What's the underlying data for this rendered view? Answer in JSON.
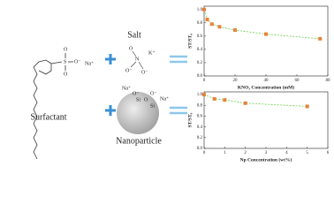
{
  "diagram": {
    "surfactant": "Surfactant",
    "salt": "Salt",
    "nanoparticle": "Nanoparticle",
    "atoms": [
      "O",
      "S",
      "O",
      "O⁻",
      "Na⁺",
      "O",
      "N",
      "O⁻",
      "O⁻",
      "K⁺",
      "Na⁺",
      "O⁻",
      "Si",
      "O",
      "Si",
      "O⁻",
      "Na⁺"
    ]
  },
  "chart_data": [
    {
      "type": "scatter",
      "ylabel": "ST/ST₀",
      "xlabel": "KNO₃ Concentration (mM)",
      "series": [
        {
          "x": [
            0,
            2,
            5,
            10,
            20,
            40,
            75
          ],
          "values": [
            1.0,
            0.85,
            0.78,
            0.74,
            0.69,
            0.63,
            0.56
          ],
          "color": "#e8823a",
          "fit_color": "#6ccf4a"
        }
      ],
      "xlim": [
        0,
        80
      ],
      "xticks": [
        0,
        20,
        40,
        60,
        80
      ],
      "ylim": [
        0,
        1.05
      ],
      "yticks": [
        {
          "value": 0,
          "label": "0.0"
        },
        0.2,
        0.4,
        0.6,
        0.8,
        {
          "value": 1,
          "label": "1.0"
        }
      ]
    },
    {
      "type": "scatter",
      "ylabel": "ST/ST₀",
      "xlabel": "Np Concentration (wt%)",
      "series": [
        {
          "x": [
            0,
            0.5,
            1,
            2,
            5
          ],
          "values": [
            1.0,
            0.92,
            0.9,
            0.84,
            0.78
          ],
          "color": "#e8823a",
          "fit_color": "#6ccf4a"
        }
      ],
      "xlim": [
        0,
        6
      ],
      "xticks": [
        0,
        1,
        2,
        3,
        4,
        5,
        6
      ],
      "ylim": [
        0,
        1.05
      ],
      "yticks": [
        {
          "value": 0,
          "label": "0.0"
        },
        0.2,
        0.4,
        0.6,
        0.8,
        {
          "value": 1,
          "label": "1.0"
        }
      ]
    }
  ]
}
